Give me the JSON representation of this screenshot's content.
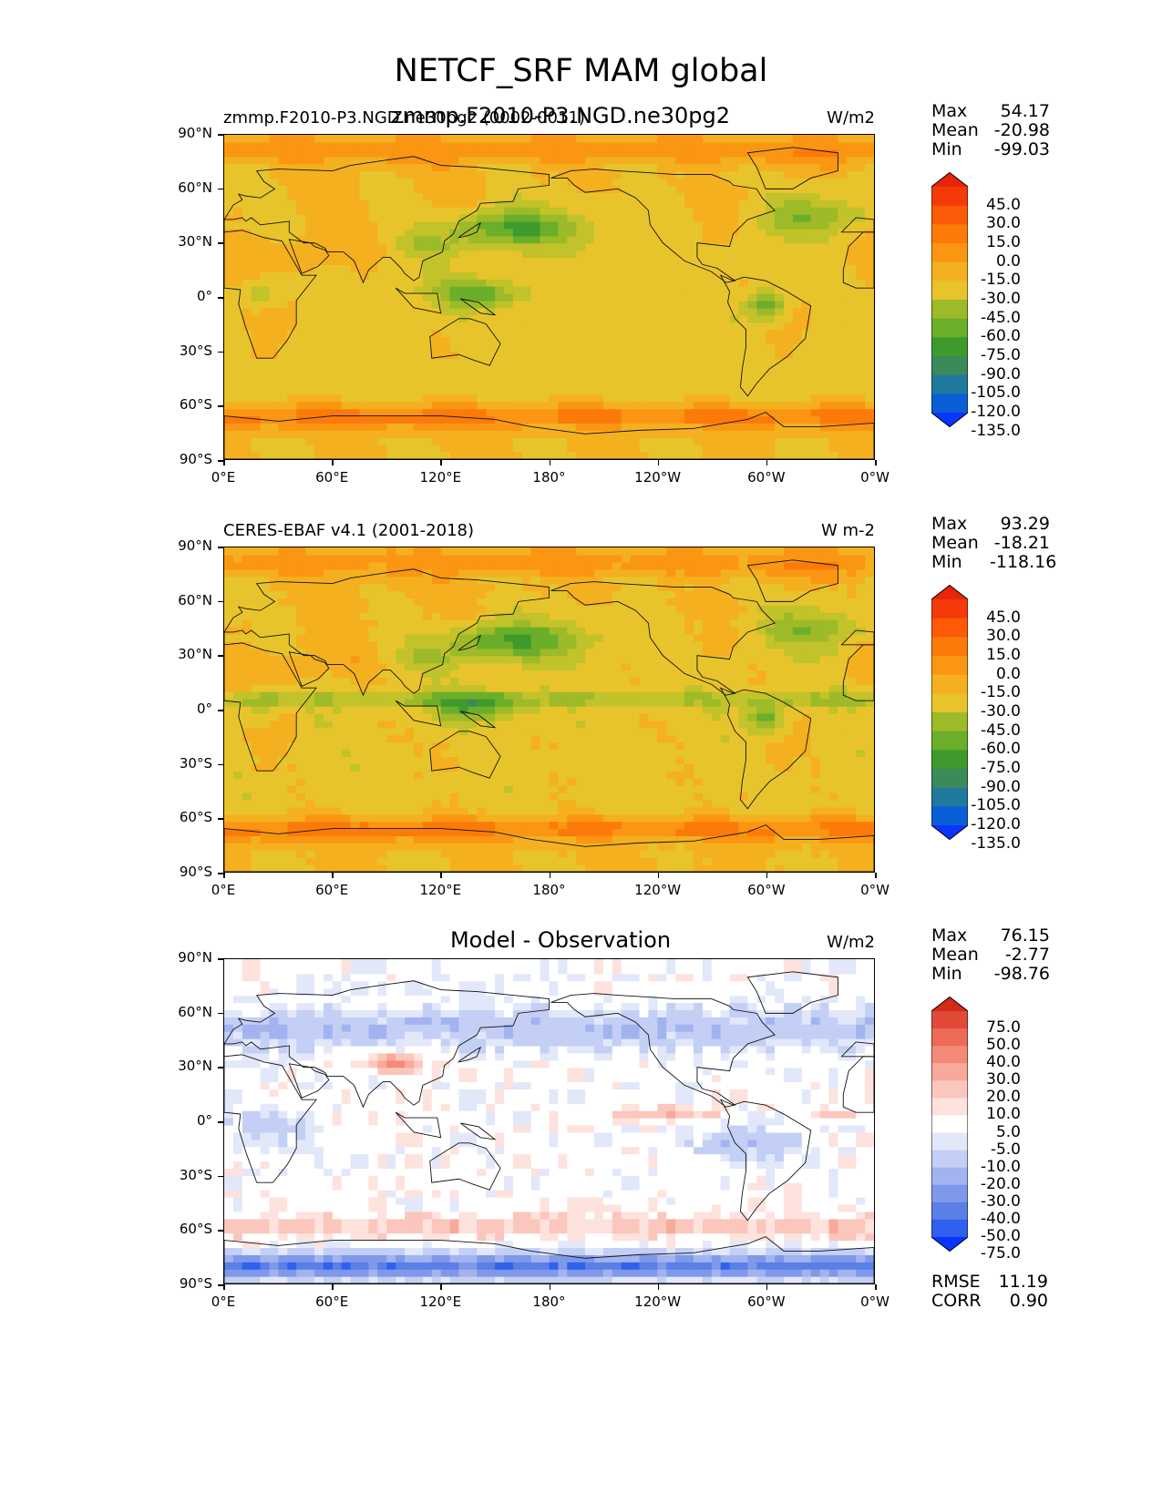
{
  "figure": {
    "title": "NETCF_SRF MAM global"
  },
  "axes": {
    "lat_ticks": [
      "90°N",
      "60°N",
      "30°N",
      "0°",
      "30°S",
      "60°S",
      "90°S"
    ],
    "lon_ticks": [
      "0°E",
      "60°E",
      "120°E",
      "180°",
      "120°W",
      "60°W",
      "0°W"
    ]
  },
  "colors": {
    "abs_levels": [
      "#0a34ff",
      "#0b5fd6",
      "#1f7a9e",
      "#3a8a5a",
      "#3f9a2e",
      "#6aae2a",
      "#9dba28",
      "#c2c22a",
      "#e8c42c",
      "#f4b01e",
      "#fb9612",
      "#fc7a0a",
      "#fc5a06",
      "#f43a08",
      "#e8240a"
    ],
    "diff_levels": [
      "#0a34ff",
      "#3060ee",
      "#5a7fe6",
      "#7f98ea",
      "#a2b3ef",
      "#c4cff5",
      "#e2e8fa",
      "#ffffff",
      "#fde2dd",
      "#fbc6bc",
      "#f9a99a",
      "#f48a78",
      "#ec6a56",
      "#e04a36",
      "#d42a1a"
    ]
  },
  "chart_data": [
    {
      "type": "heatmap",
      "title": "zmmp.F2010-P3.NGD.ne30pg2",
      "subtitle_left": "zmmp.F2010-P3.NGD.ne30pg2 (0002-0011)",
      "units": "W/m2",
      "stats": {
        "max": "54.17",
        "mean": "-20.98",
        "min": "-99.03"
      },
      "colorbar_levels": [
        "45.0",
        "30.0",
        "15.0",
        "0.0",
        "-15.0",
        "-30.0",
        "-45.0",
        "-60.0",
        "-75.0",
        "-90.0",
        "-105.0",
        "-120.0",
        "-135.0"
      ],
      "lat_range": [
        -90,
        90
      ],
      "lon_range": [
        0,
        360
      ]
    },
    {
      "type": "heatmap",
      "title": "",
      "subtitle_left": "CERES-EBAF v4.1 (2001-2018)",
      "units": "W m-2",
      "stats": {
        "max": "93.29",
        "mean": "-18.21",
        "min": "-118.16"
      },
      "colorbar_levels": [
        "45.0",
        "30.0",
        "15.0",
        "0.0",
        "-15.0",
        "-30.0",
        "-45.0",
        "-60.0",
        "-75.0",
        "-90.0",
        "-105.0",
        "-120.0",
        "-135.0"
      ],
      "lat_range": [
        -90,
        90
      ],
      "lon_range": [
        0,
        360
      ]
    },
    {
      "type": "heatmap",
      "title": "Model - Observation",
      "subtitle_left": "",
      "units": "W/m2",
      "stats": {
        "max": "76.15",
        "mean": "-2.77",
        "min": "-98.76"
      },
      "colorbar_levels": [
        "75.0",
        "50.0",
        "40.0",
        "30.0",
        "20.0",
        "10.0",
        "5.0",
        "-5.0",
        "-10.0",
        "-20.0",
        "-30.0",
        "-40.0",
        "-50.0",
        "-75.0"
      ],
      "footer": {
        "rmse_label": "RMSE",
        "rmse": "11.19",
        "corr_label": "CORR",
        "corr": "0.90"
      },
      "lat_range": [
        -90,
        90
      ],
      "lon_range": [
        0,
        360
      ]
    }
  ]
}
